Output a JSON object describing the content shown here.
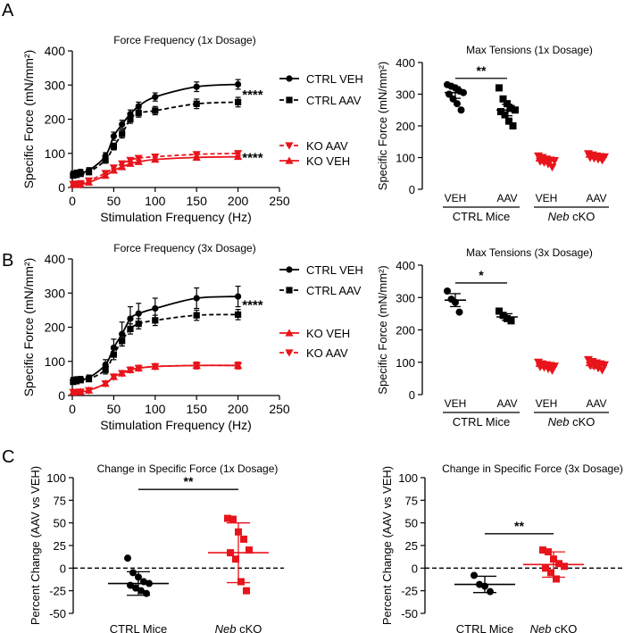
{
  "figure": {
    "panel_labels": [
      "A",
      "B",
      "C"
    ]
  },
  "colors": {
    "ctrl": "#000000",
    "ko": "#e8141b"
  },
  "chart_data": [
    {
      "id": "A1",
      "type": "line",
      "title": "Force Frequency (1x Dosage)",
      "xlabel": "Stimulation Frequency (Hz)",
      "ylabel": "Specific Force (mN/mm²)",
      "xlim": [
        0,
        250
      ],
      "ylim": [
        0,
        400
      ],
      "xticks": [
        0,
        50,
        100,
        150,
        200,
        250
      ],
      "yticks": [
        0,
        100,
        200,
        300,
        400
      ],
      "x": [
        1,
        5,
        10,
        20,
        40,
        50,
        60,
        70,
        80,
        100,
        150,
        200
      ],
      "series": [
        {
          "name": "CTRL VEH",
          "color": "ctrl",
          "marker": "circle",
          "dash": false,
          "values": [
            40,
            43,
            45,
            50,
            92,
            150,
            185,
            215,
            238,
            265,
            295,
            302
          ],
          "err": [
            8,
            8,
            8,
            8,
            10,
            12,
            12,
            12,
            12,
            12,
            14,
            14
          ]
        },
        {
          "name": "CTRL AAV",
          "color": "ctrl",
          "marker": "square",
          "dash": true,
          "values": [
            35,
            37,
            40,
            45,
            80,
            120,
            157,
            200,
            218,
            225,
            245,
            250
          ],
          "err": [
            7,
            7,
            7,
            7,
            9,
            10,
            12,
            12,
            12,
            12,
            14,
            14
          ]
        },
        {
          "name": "KO AAV",
          "color": "ko",
          "marker": "tri-down",
          "dash": true,
          "values": [
            10,
            11,
            12,
            20,
            42,
            58,
            70,
            80,
            86,
            90,
            97,
            100
          ],
          "err": [
            3,
            3,
            3,
            4,
            5,
            5,
            6,
            6,
            6,
            6,
            7,
            7
          ]
        },
        {
          "name": "KO VEH",
          "color": "ko",
          "marker": "tri-up",
          "dash": false,
          "values": [
            8,
            8,
            9,
            15,
            35,
            50,
            60,
            70,
            75,
            82,
            88,
            90
          ],
          "err": [
            3,
            3,
            3,
            4,
            5,
            5,
            6,
            6,
            6,
            6,
            7,
            7
          ]
        }
      ],
      "annotations": [
        {
          "text": "****",
          "x": 205,
          "y": 275,
          "color": "ctrl"
        },
        {
          "text": "****",
          "x": 205,
          "y": 90,
          "color": "ko"
        }
      ]
    },
    {
      "id": "A2",
      "type": "scatter",
      "title": "Max Tensions (1x Dosage)",
      "ylabel": "Specific Force (mN/mm²)",
      "ylim": [
        0,
        400
      ],
      "yticks": [
        0,
        100,
        200,
        300,
        400
      ],
      "groups": [
        {
          "label": "VEH",
          "color": "ctrl",
          "marker": "circle",
          "mean": 305,
          "sem": 18,
          "points": [
            330,
            325,
            320,
            310,
            305,
            300,
            285,
            270,
            250
          ]
        },
        {
          "label": "AAV",
          "color": "ctrl",
          "marker": "square",
          "mean": 250,
          "sem": 18,
          "points": [
            320,
            285,
            270,
            255,
            250,
            245,
            235,
            215,
            200
          ]
        },
        {
          "label": "VEH",
          "color": "ko",
          "marker": "tri-down",
          "mean": 90,
          "sem": 8,
          "points": [
            105,
            100,
            95,
            92,
            90,
            88,
            85,
            80,
            70
          ]
        },
        {
          "label": "AAV",
          "color": "ko",
          "marker": "tri-down",
          "mean": 102,
          "sem": 5,
          "points": [
            112,
            108,
            105,
            103,
            102,
            100,
            98,
            95,
            92
          ]
        }
      ],
      "group_labels": [
        "CTRL Mice",
        "Neb cKO"
      ],
      "significance": {
        "text": "**",
        "between": [
          0,
          1
        ],
        "y": 350
      }
    },
    {
      "id": "B1",
      "type": "line",
      "title": "Force Frequency (3x Dosage)",
      "xlabel": "Stimulation Frequency (Hz)",
      "ylabel": "Specific Force (mN/mm²)",
      "xlim": [
        0,
        250
      ],
      "ylim": [
        0,
        400
      ],
      "xticks": [
        0,
        50,
        100,
        150,
        200,
        250
      ],
      "yticks": [
        0,
        100,
        200,
        300,
        400
      ],
      "x": [
        1,
        5,
        10,
        20,
        40,
        50,
        60,
        70,
        80,
        100,
        150,
        200
      ],
      "series": [
        {
          "name": "CTRL VEH",
          "color": "ctrl",
          "marker": "circle",
          "dash": false,
          "values": [
            45,
            47,
            48,
            52,
            90,
            140,
            180,
            225,
            240,
            255,
            285,
            290
          ],
          "err": [
            8,
            8,
            8,
            8,
            15,
            25,
            35,
            35,
            30,
            30,
            30,
            30
          ]
        },
        {
          "name": "CTRL AAV",
          "color": "ctrl",
          "marker": "square",
          "dash": true,
          "values": [
            40,
            42,
            45,
            48,
            75,
            120,
            160,
            195,
            210,
            220,
            235,
            237
          ],
          "err": [
            7,
            7,
            7,
            7,
            12,
            15,
            15,
            15,
            15,
            15,
            15,
            15
          ]
        },
        {
          "name": "KO VEH",
          "color": "ko",
          "marker": "tri-up",
          "dash": false,
          "values": [
            10,
            10,
            11,
            15,
            35,
            55,
            65,
            75,
            80,
            85,
            88,
            88
          ],
          "err": [
            3,
            3,
            3,
            4,
            5,
            6,
            7,
            8,
            8,
            8,
            10,
            10
          ]
        },
        {
          "name": "KO AAV",
          "color": "ko",
          "marker": "tri-down",
          "dash": true,
          "values": [
            10,
            10,
            11,
            15,
            35,
            55,
            65,
            75,
            80,
            85,
            88,
            88
          ],
          "err": [
            3,
            3,
            3,
            4,
            5,
            6,
            7,
            8,
            8,
            8,
            10,
            10
          ]
        }
      ],
      "annotations": [
        {
          "text": "****",
          "x": 205,
          "y": 268,
          "color": "ctrl"
        }
      ]
    },
    {
      "id": "B2",
      "type": "scatter",
      "title": "Max Tensions (3x Dosage)",
      "ylabel": "Specific Force (mN/mm²)",
      "ylim": [
        0,
        400
      ],
      "yticks": [
        0,
        100,
        200,
        300,
        400
      ],
      "groups": [
        {
          "label": "VEH",
          "color": "ctrl",
          "marker": "circle",
          "mean": 292,
          "sem": 20,
          "points": [
            320,
            295,
            285,
            255
          ]
        },
        {
          "label": "AAV",
          "color": "ctrl",
          "marker": "square",
          "mean": 240,
          "sem": 10,
          "points": [
            258,
            245,
            235,
            228
          ]
        },
        {
          "label": "VEH",
          "color": "ko",
          "marker": "tri-down",
          "mean": 88,
          "sem": 6,
          "points": [
            100,
            95,
            92,
            90,
            88,
            86,
            84,
            80,
            75
          ]
        },
        {
          "label": "AAV",
          "color": "ko",
          "marker": "tri-down",
          "mean": 90,
          "sem": 8,
          "points": [
            108,
            102,
            98,
            95,
            92,
            90,
            88,
            82,
            76
          ]
        }
      ],
      "group_labels": [
        "CTRL Mice",
        "Neb cKO"
      ],
      "significance": {
        "text": "*",
        "between": [
          0,
          1
        ],
        "y": 345
      }
    },
    {
      "id": "C1",
      "type": "scatter",
      "title": "Change in Specific Force (1x Dosage)",
      "ylabel": "Percent Change (AAV vs VEH)",
      "ylim": [
        -50,
        100
      ],
      "yticks": [
        -50,
        -25,
        0,
        25,
        50,
        75,
        100
      ],
      "xcategories": [
        "CTRL Mice",
        "Neb cKO"
      ],
      "groups": [
        {
          "label": "CTRL Mice",
          "color": "ctrl",
          "marker": "circle",
          "mean": -17,
          "sd": 13,
          "points": [
            11,
            -5,
            -10,
            -15,
            -17,
            -19,
            -22,
            -25,
            -28
          ]
        },
        {
          "label": "Neb cKO",
          "color": "ko",
          "marker": "square",
          "mean": 17,
          "sd": 33,
          "points": [
            55,
            54,
            40,
            32,
            20,
            17,
            10,
            -15,
            -25
          ]
        }
      ],
      "reference_line": 0,
      "significance": {
        "text": "**",
        "y": 87
      }
    },
    {
      "id": "C2",
      "type": "scatter",
      "title": "Change in Specific Force (3x Dosage)",
      "ylabel": "Percent Change (AAV vs VEH)",
      "ylim": [
        -50,
        100
      ],
      "yticks": [
        -50,
        -25,
        0,
        25,
        50,
        75,
        100
      ],
      "xcategories": [
        "CTRL Mice",
        "Neb cKO"
      ],
      "groups": [
        {
          "label": "CTRL Mice",
          "color": "ctrl",
          "marker": "circle",
          "mean": -18,
          "sd": 9,
          "points": [
            -8,
            -18,
            -20,
            -26
          ]
        },
        {
          "label": "Neb cKO",
          "color": "ko",
          "marker": "square",
          "mean": 4,
          "sd": 14,
          "points": [
            20,
            18,
            10,
            5,
            2,
            0,
            -5,
            -12
          ]
        }
      ],
      "reference_line": 0,
      "significance": {
        "text": "**",
        "y": 38
      }
    }
  ]
}
